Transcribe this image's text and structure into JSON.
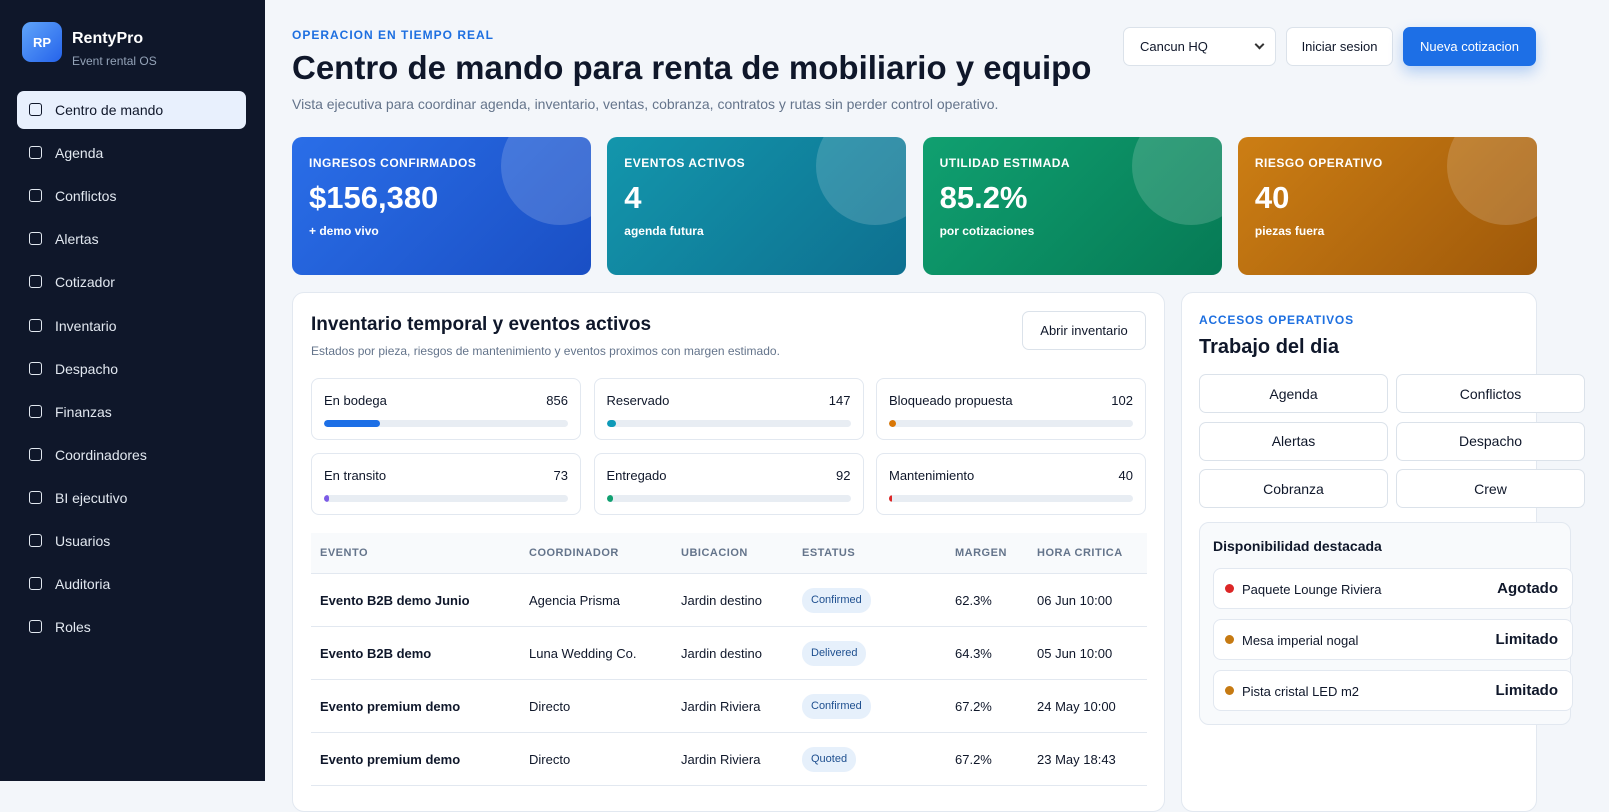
{
  "sidebar": {
    "logo": "RP",
    "brand": "RentyPro",
    "tagline": "Event rental OS",
    "nav": [
      "Centro de mando",
      "Agenda",
      "Conflictos",
      "Alertas",
      "Cotizador",
      "Inventario",
      "Despacho",
      "Finanzas",
      "Coordinadores",
      "BI ejecutivo",
      "Usuarios",
      "Auditoria",
      "Roles"
    ]
  },
  "header": {
    "eyebrow": "OPERACION EN TIEMPO REAL",
    "title": "Centro de mando para renta de mobiliario y equipo",
    "subtitle": "Vista ejecutiva para coordinar agenda, inventario, ventas, cobranza, contratos y rutas sin perder control operativo.",
    "location": "Cancun HQ",
    "login": "Iniciar sesion",
    "cta": "Nueva cotizacion"
  },
  "kpis": [
    {
      "label": "INGRESOS CONFIRMADOS",
      "value": "$156,380",
      "note": "+ demo vivo"
    },
    {
      "label": "EVENTOS ACTIVOS",
      "value": "4",
      "note": "agenda futura"
    },
    {
      "label": "UTILIDAD ESTIMADA",
      "value": "85.2%",
      "note": "por cotizaciones"
    },
    {
      "label": "RIESGO OPERATIVO",
      "value": "40",
      "note": "piezas fuera"
    }
  ],
  "inventory": {
    "title": "Inventario temporal y eventos activos",
    "subtitle": "Estados por pieza, riesgos de mantenimiento y eventos proximos con margen estimado.",
    "button": "Abrir inventario",
    "stats": [
      {
        "label": "En bodega",
        "value": 856
      },
      {
        "label": "Reservado",
        "value": 147
      },
      {
        "label": "Bloqueado propuesta",
        "value": 102
      },
      {
        "label": "En transito",
        "value": 73
      },
      {
        "label": "Entregado",
        "value": 92
      },
      {
        "label": "Mantenimiento",
        "value": 40
      }
    ],
    "table": {
      "columns": [
        "EVENTO",
        "COORDINADOR",
        "UBICACION",
        "ESTATUS",
        "MARGEN",
        "HORA CRITICA"
      ],
      "rows": [
        [
          "Evento B2B demo Junio",
          "Agencia Prisma",
          "Jardin destino",
          "Confirmed",
          "62.3%",
          "06 Jun 10:00"
        ],
        [
          "Evento B2B demo",
          "Luna Wedding Co.",
          "Jardin destino",
          "Delivered",
          "64.3%",
          "05 Jun 10:00"
        ],
        [
          "Evento premium demo",
          "Directo",
          "Jardin Riviera",
          "Confirmed",
          "67.2%",
          "24 May 10:00"
        ],
        [
          "Evento premium demo",
          "Directo",
          "Jardin Riviera",
          "Quoted",
          "67.2%",
          "23 May 18:43"
        ]
      ]
    }
  },
  "quick_access": {
    "eyebrow": "ACCESOS OPERATIVOS",
    "title": "Trabajo del dia",
    "buttons": [
      "Agenda",
      "Conflictos",
      "Alertas",
      "Despacho",
      "Cobranza",
      "Crew"
    ]
  },
  "availability": {
    "title": "Disponibilidad destacada",
    "items": [
      {
        "name": "Paquete Lounge Riviera",
        "status": "Agotado"
      },
      {
        "name": "Mesa imperial nogal",
        "status": "Limitado"
      },
      {
        "name": "Pista cristal LED m2",
        "status": "Limitado"
      }
    ]
  }
}
